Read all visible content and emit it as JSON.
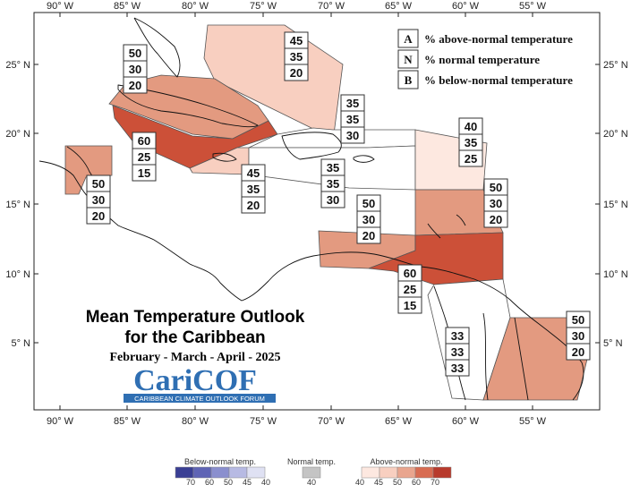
{
  "map": {
    "title_line1": "Mean Temperature Outlook",
    "title_line2": "for the Caribbean",
    "period": "February - March - April - 2025",
    "logo_text": "CariCOF",
    "logo_subtitle": "CARIBBEAN CLIMATE OUTLOOK FORUM",
    "lon_labels": [
      "90° W",
      "85° W",
      "80° W",
      "75° W",
      "70° W",
      "65° W",
      "60° W",
      "55° W"
    ],
    "lat_labels": [
      "25° N",
      "20° N",
      "15° N",
      "10° N",
      "5° N"
    ],
    "key": [
      {
        "letter": "A",
        "text": "% above-normal temperature"
      },
      {
        "letter": "N",
        "text": "% normal temperature"
      },
      {
        "letter": "B",
        "text": "% below-normal temperature"
      }
    ],
    "regions": [
      {
        "name": "bahamas",
        "a": "45",
        "n": "35",
        "b": "20",
        "fill": "#f8cfc0"
      },
      {
        "name": "northwest-caribbean",
        "a": "50",
        "n": "30",
        "b": "20",
        "fill": "#e39a80"
      },
      {
        "name": "cuba-caymans",
        "a": "60",
        "n": "25",
        "b": "15",
        "fill": "#cc5038"
      },
      {
        "name": "jamaica",
        "a": "45",
        "n": "35",
        "b": "20",
        "fill": "#f8cfc0"
      },
      {
        "name": "belize",
        "a": "50",
        "n": "30",
        "b": "20",
        "fill": "#e39a80"
      },
      {
        "name": "hispaniola-north",
        "a": "35",
        "n": "35",
        "b": "30",
        "fill": "#ffffff"
      },
      {
        "name": "hispaniola-south",
        "a": "35",
        "n": "35",
        "b": "30",
        "fill": "#ffffff"
      },
      {
        "name": "northern-leewards",
        "a": "40",
        "n": "35",
        "b": "25",
        "fill": "#fde8e0"
      },
      {
        "name": "windward-islands",
        "a": "50",
        "n": "30",
        "b": "20",
        "fill": "#e39a80"
      },
      {
        "name": "abc-islands",
        "a": "50",
        "n": "30",
        "b": "20",
        "fill": "#e39a80"
      },
      {
        "name": "trinidad-tobago",
        "a": "60",
        "n": "25",
        "b": "15",
        "fill": "#cc5038"
      },
      {
        "name": "guyana",
        "a": "33",
        "n": "33",
        "b": "33",
        "fill": "#ffffff"
      },
      {
        "name": "suriname-french-guiana",
        "a": "50",
        "n": "30",
        "b": "20",
        "fill": "#e39a80"
      }
    ]
  },
  "colorbar": {
    "below": {
      "title": "Below-normal temp.",
      "ticks": [
        "70",
        "60",
        "50",
        "45",
        "40"
      ],
      "colors": [
        "#3a3f94",
        "#5f64b5",
        "#8a8fce",
        "#b7bae3",
        "#dfe1f3"
      ]
    },
    "normal": {
      "title": "Normal temp.",
      "ticks": [
        "40"
      ],
      "colors": [
        "#c4c4c4"
      ]
    },
    "above": {
      "title": "Above-normal temp.",
      "ticks": [
        "40",
        "45",
        "50",
        "60",
        "70"
      ],
      "colors": [
        "#fde8e0",
        "#f8cfc0",
        "#e9a58e",
        "#d86c52",
        "#b83a2c"
      ]
    }
  }
}
